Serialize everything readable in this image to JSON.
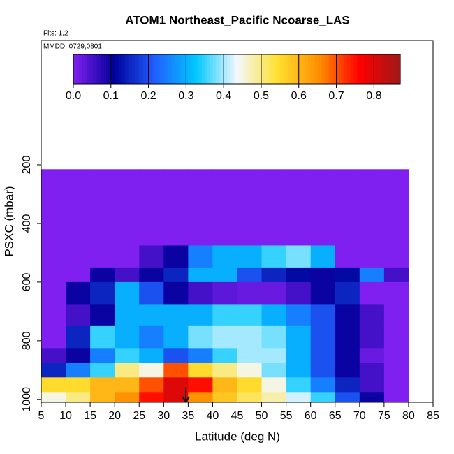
{
  "chart_data": {
    "type": "heatmap",
    "title": "ATOM1 Northeast_Pacific Ncoarse_LAS",
    "annotations": [
      "Flts: 1,2",
      "MMDD: 0729,0801"
    ],
    "x_label": "Latitude (deg N)",
    "y_label": "PSXC (mbar)",
    "xlim": [
      5,
      85
    ],
    "xticks": [
      5,
      10,
      15,
      20,
      25,
      30,
      35,
      40,
      45,
      50,
      55,
      60,
      65,
      70,
      75,
      80,
      85
    ],
    "ylim": [
      1010,
      -224
    ],
    "yticks": [
      200,
      400,
      600,
      800,
      1000
    ],
    "x_edges": [
      5,
      10,
      15,
      20,
      25,
      30,
      35,
      40,
      45,
      50,
      55,
      60,
      65,
      70,
      75,
      80
    ],
    "y_edges": [
      215,
      475,
      550,
      600,
      675,
      750,
      825,
      875,
      925,
      975,
      1010
    ],
    "z": [
      [
        0,
        0,
        0,
        0,
        0,
        0,
        0,
        0,
        0,
        0,
        0,
        0,
        0,
        0,
        0
      ],
      [
        0,
        0,
        0,
        0,
        0.05,
        0.1,
        0.25,
        0.3,
        0.3,
        0.35,
        0.38,
        0.3,
        0,
        0,
        0
      ],
      [
        0,
        0,
        0.1,
        0.05,
        0.1,
        0.15,
        0.3,
        0.3,
        0.2,
        0.15,
        0.12,
        0.1,
        0.12,
        0.25,
        0.05
      ],
      [
        0,
        0.1,
        0.15,
        0.3,
        0.2,
        0.1,
        0.05,
        0.03,
        0.02,
        0.02,
        0.05,
        0.1,
        0.15,
        0,
        0
      ],
      [
        0,
        0.05,
        0.1,
        0.3,
        0.3,
        0.3,
        0.3,
        0.35,
        0.35,
        0.3,
        0.25,
        0.2,
        0.1,
        0.05,
        0
      ],
      [
        0,
        0.15,
        0.35,
        0.3,
        0.25,
        0.3,
        0.38,
        0.4,
        0.4,
        0.38,
        0.3,
        0.2,
        0.1,
        0.05,
        0
      ],
      [
        0.05,
        0.1,
        0.25,
        0.35,
        0.3,
        0.2,
        0.25,
        0.35,
        0.4,
        0.4,
        0.3,
        0.2,
        0.1,
        0.02,
        0
      ],
      [
        0.15,
        0.25,
        0.35,
        0.5,
        0.45,
        0.7,
        0.55,
        0.5,
        0.45,
        0.38,
        0.3,
        0.2,
        0.1,
        0.05,
        0
      ],
      [
        0.55,
        0.55,
        0.6,
        0.6,
        0.7,
        0.8,
        0.75,
        0.6,
        0.55,
        0.45,
        0.35,
        0.25,
        0.15,
        0.05,
        0
      ],
      [
        0.45,
        0.5,
        0.6,
        0.65,
        0.75,
        0.8,
        0.65,
        0.58,
        0.52,
        0.48,
        0.42,
        0.35,
        0.2,
        0.1,
        0
      ]
    ],
    "colorbar": {
      "lim": [
        0,
        0.87
      ],
      "ticks": [
        {
          "value": 0,
          "label": "0.0"
        },
        0.1,
        0.2,
        0.3,
        0.4,
        0.5,
        0.6,
        0.7,
        0.8
      ],
      "colors": [
        "#8020f0",
        "#00009a",
        "#2060ff",
        "#00c8ff",
        "#f2f8ff",
        "#ffe030",
        "#ff9000",
        "#ff0000",
        "#a01818"
      ]
    }
  }
}
